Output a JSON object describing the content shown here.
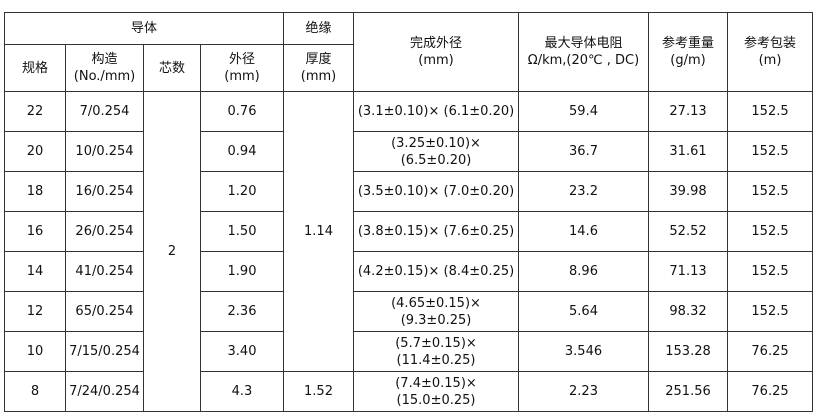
{
  "header": {
    "conductor": "导体",
    "insulation": "绝缘",
    "finished_od": [
      "完成外径",
      "(mm)"
    ],
    "max_resistance": [
      "最大导体电阻",
      "Ω/km,(20℃ , DC)"
    ],
    "ref_weight": [
      "参考重量",
      "(g/m)"
    ],
    "ref_package": [
      "参考包装",
      "(m)"
    ],
    "gauge": "规格",
    "construction": [
      "构造",
      "(No./mm)"
    ],
    "cores": "芯数",
    "od": [
      "外径",
      "(mm)"
    ],
    "thickness": [
      "厚度",
      "(mm)"
    ]
  },
  "cores": "2",
  "insulation_thickness": [
    "1.14",
    "1.52"
  ],
  "rows": [
    [
      "22",
      "7/0.254",
      "0.76",
      "(3.1±0.10)× (6.1±0.20)",
      "59.4",
      "27.13",
      "152.5"
    ],
    [
      "20",
      "10/0.254",
      "0.94",
      "(3.25±0.10)× (6.5±0.20)",
      "36.7",
      "31.61",
      "152.5"
    ],
    [
      "18",
      "16/0.254",
      "1.20",
      "(3.5±0.10)× (7.0±0.20)",
      "23.2",
      "39.98",
      "152.5"
    ],
    [
      "16",
      "26/0.254",
      "1.50",
      "(3.8±0.15)× (7.6±0.25)",
      "14.6",
      "52.52",
      "152.5"
    ],
    [
      "14",
      "41/0.254",
      "1.90",
      "(4.2±0.15)× (8.4±0.25)",
      "8.96",
      "71.13",
      "152.5"
    ],
    [
      "12",
      "65/0.254",
      "2.36",
      "(4.65±0.15)× (9.3±0.25)",
      "5.64",
      "98.32",
      "152.5"
    ],
    [
      "10",
      "7/15/0.254",
      "3.40",
      "(5.7±0.15)× (11.4±0.25)",
      "3.546",
      "153.28",
      "76.25"
    ],
    [
      "8",
      "7/24/0.254",
      "4.3",
      "(7.4±0.15)× (15.0±0.25)",
      "2.23",
      "251.56",
      "76.25"
    ]
  ]
}
